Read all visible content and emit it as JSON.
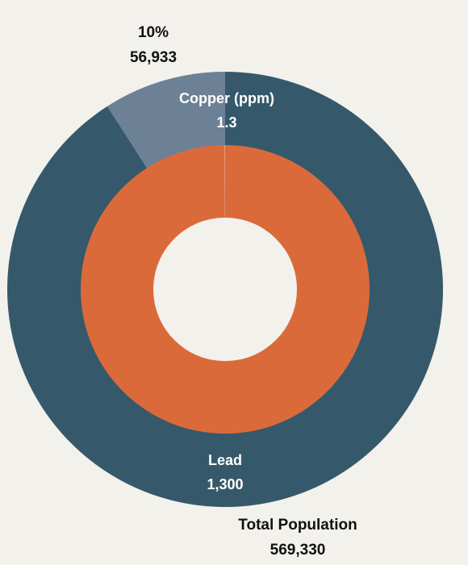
{
  "chart_data": {
    "type": "pie",
    "variant": "nested-donut",
    "colors": {
      "background": "#f3f1ec",
      "outer_main": "#35596b",
      "outer_highlight": "#6d8196",
      "inner": "#db6a3b",
      "hole": "#f3f1ec"
    },
    "outer_ring": {
      "slices": [
        {
          "label": "Total Population",
          "value": 569330,
          "display": "569,330"
        },
        {
          "label": "",
          "value": 56933,
          "display": "56,933",
          "percent": "10%"
        }
      ]
    },
    "inner_ring": {
      "slices": [
        {
          "label": "Lead",
          "value": 1300,
          "display": "1,300"
        },
        {
          "label": "Copper (ppm)",
          "value": 1.3,
          "display": "1.3"
        }
      ]
    }
  }
}
